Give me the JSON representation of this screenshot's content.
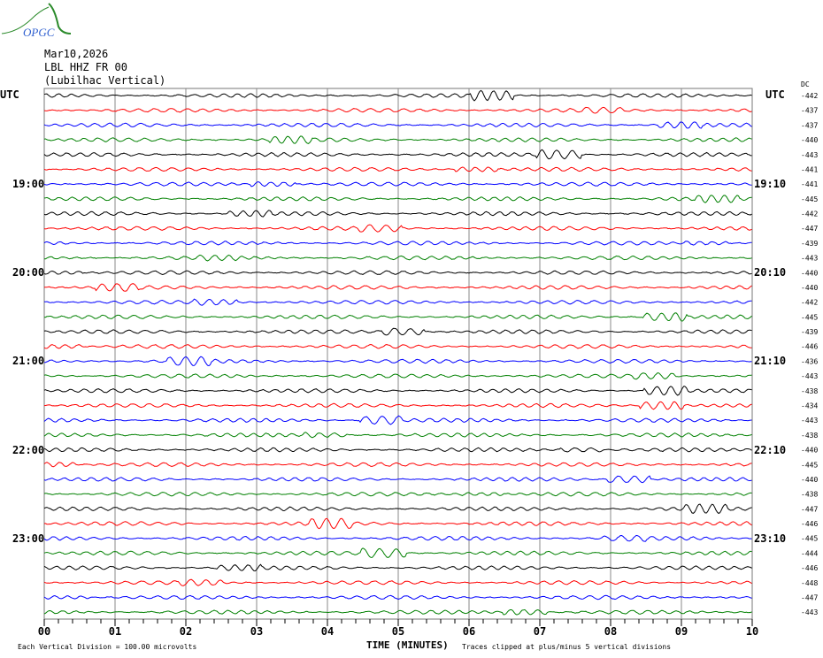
{
  "header": {
    "logo_text": "OPGC",
    "date": "Mar10,2026",
    "station": "LBL HHZ FR 00",
    "location": "(Lubilhac Vertical)"
  },
  "chart_data": {
    "type": "line",
    "title": "",
    "left_axis_label": "UTC",
    "right_axis_label": "UTC",
    "dc_label": "DC",
    "xlabel": "TIME (MINUTES)",
    "xlim": [
      0,
      10
    ],
    "x_tick_labels": [
      "00",
      "01",
      "02",
      "03",
      "04",
      "05",
      "06",
      "07",
      "08",
      "09",
      "10"
    ],
    "left_time_labels": [
      "19:00",
      "20:00",
      "21:00",
      "22:00",
      "23:00"
    ],
    "right_time_labels": [
      "19:10",
      "20:10",
      "21:10",
      "22:10",
      "23:10"
    ],
    "time_label_rows": [
      6,
      12,
      18,
      24,
      30
    ],
    "trace_colors": [
      "#000000",
      "#ff0000",
      "#0000ff",
      "#008000"
    ],
    "dc_offsets": [
      -442,
      -437,
      -437,
      -440,
      -443,
      -441,
      -441,
      -445,
      -442,
      -447,
      -439,
      -443,
      -440,
      -440,
      -442,
      -445,
      -439,
      -446,
      -436,
      -443,
      -438,
      -434,
      -443,
      -438,
      -440,
      -445,
      -440,
      -438,
      -447,
      -446,
      -445,
      -444,
      -446,
      -448,
      -447,
      -443
    ],
    "grid": true
  },
  "footer": {
    "scale_note": "Each Vertical Division =  100.00 microvolts",
    "clip_note": "Traces clipped at plus/minus 5 vertical divisions"
  }
}
